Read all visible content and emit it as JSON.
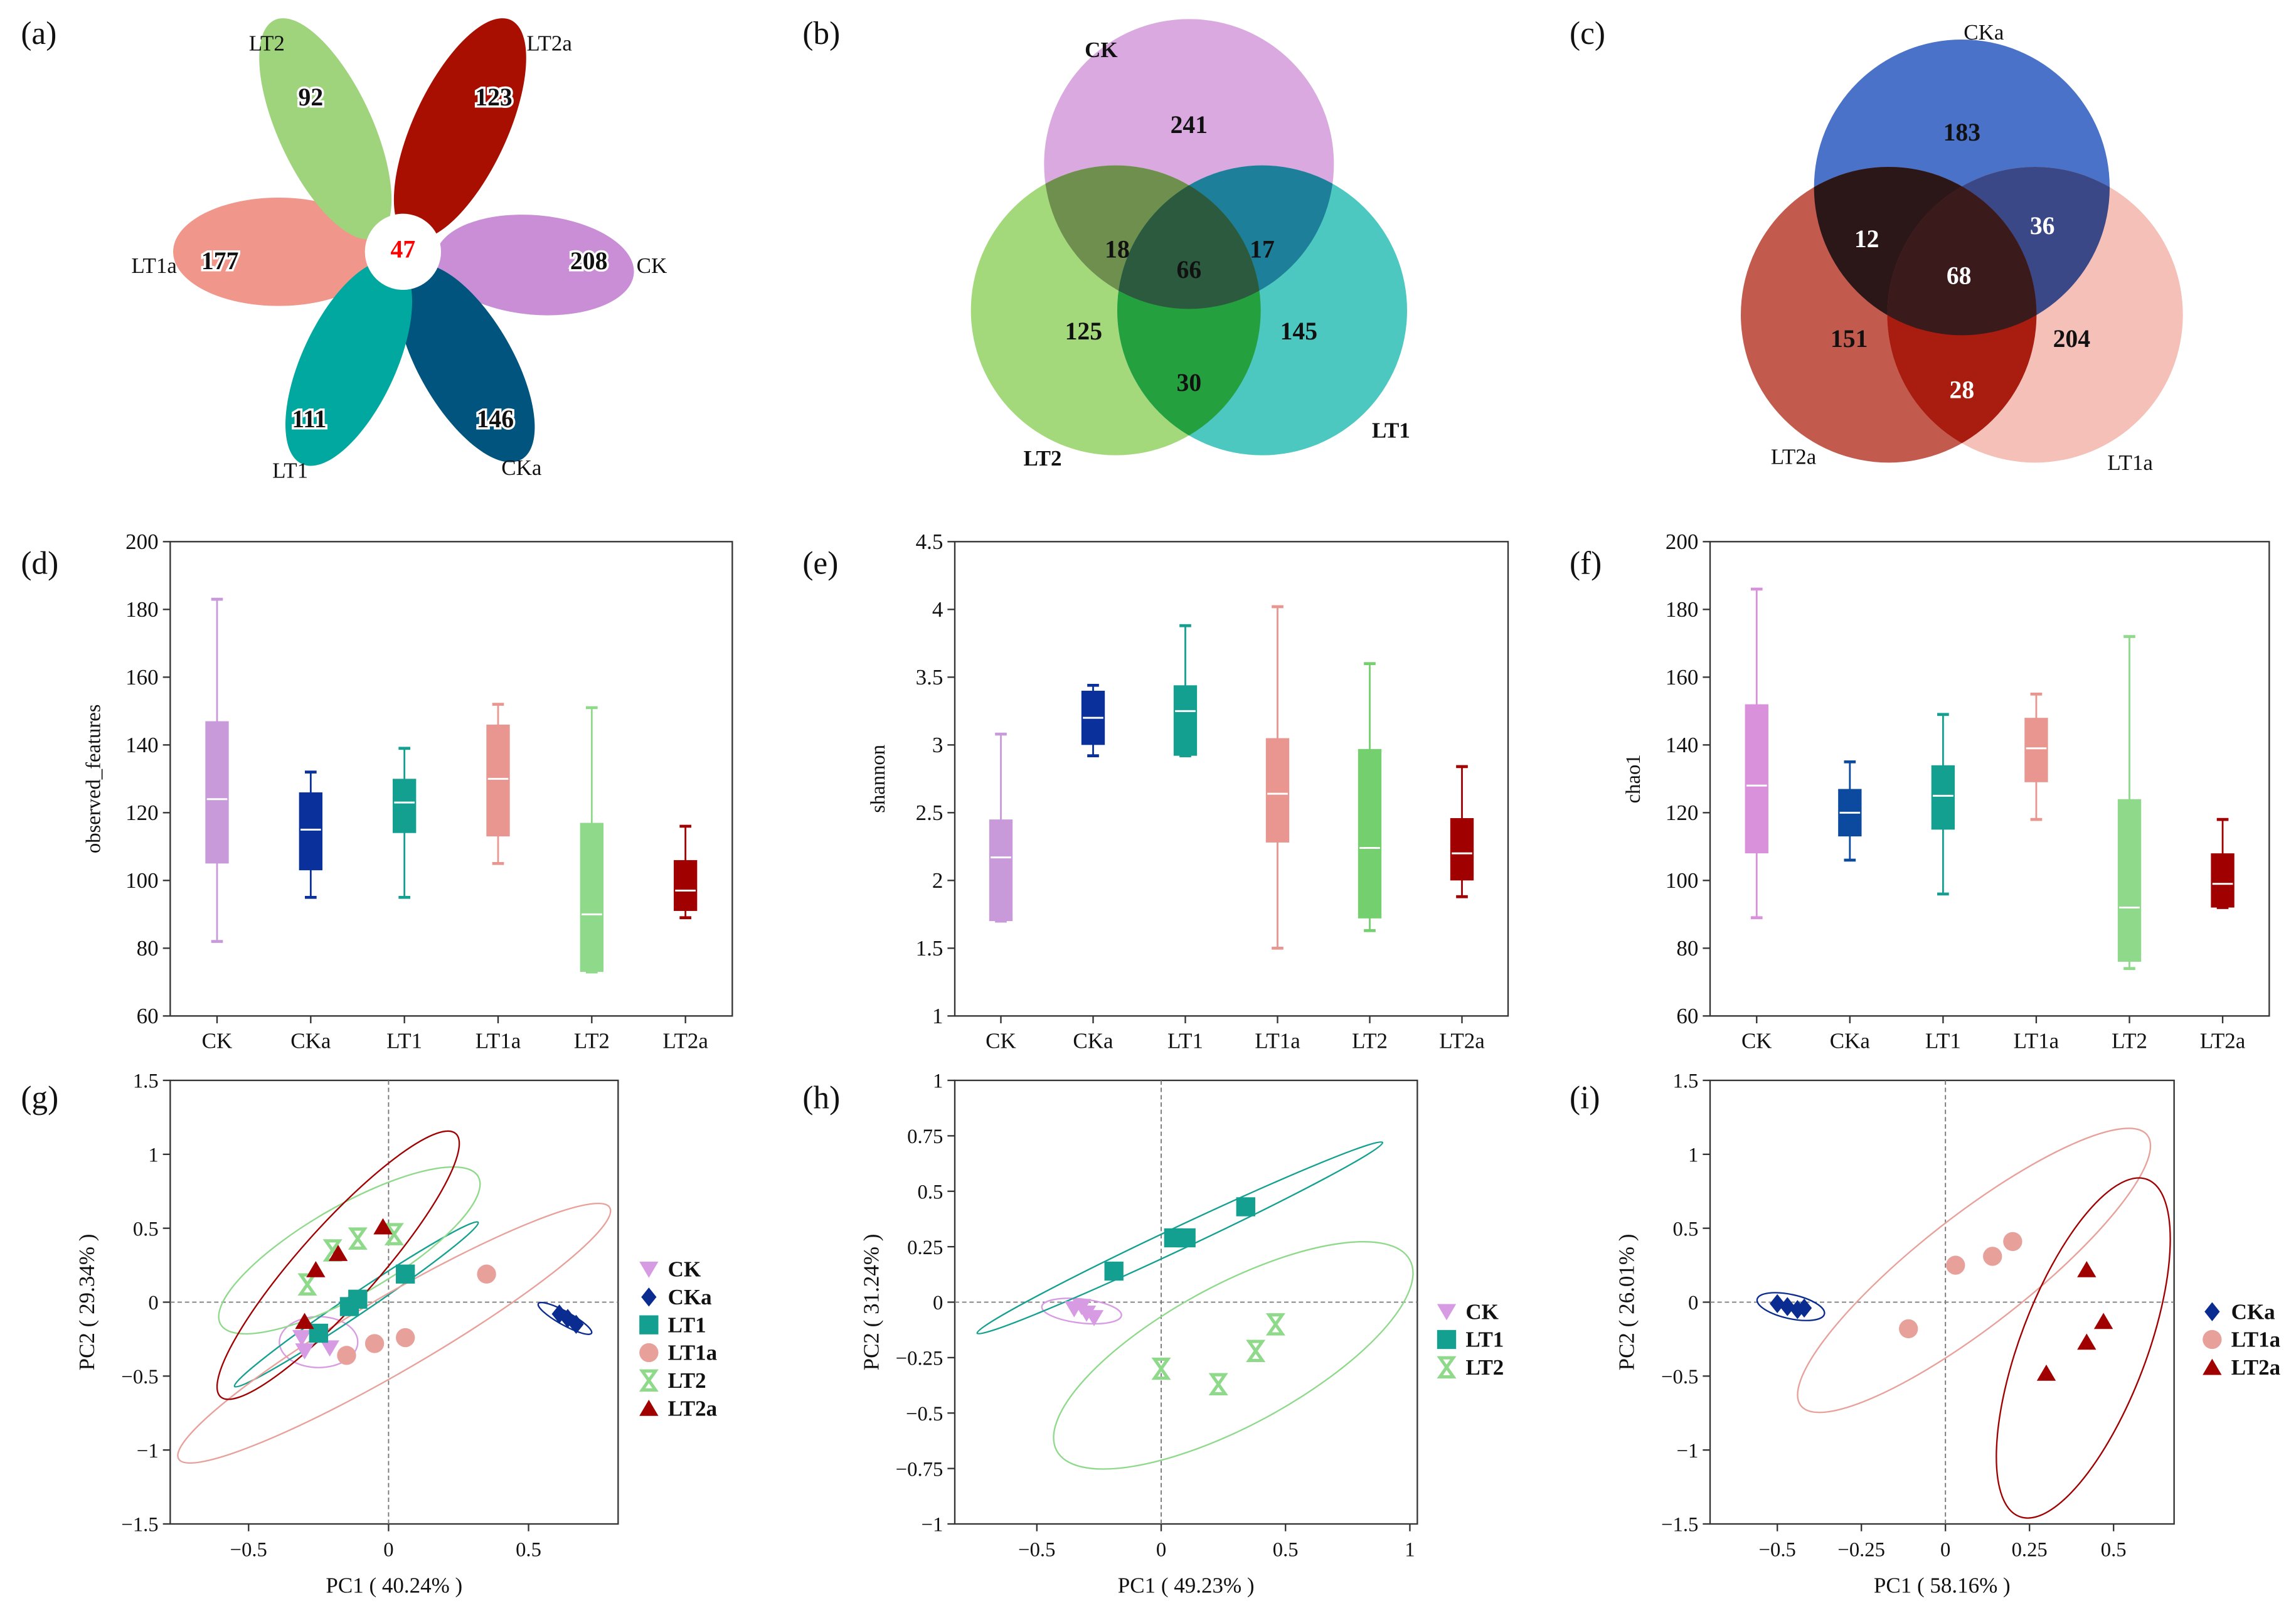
{
  "chart_data": [
    {
      "panel_label": "(a)",
      "type": "flower",
      "petals": [
        {
          "label": "LT1a",
          "count": "177",
          "color": "#f0968a"
        },
        {
          "label": "LT2",
          "count": "92",
          "color": "#9fd37c"
        },
        {
          "label": "LT2a",
          "count": "123",
          "color": "#a80f00"
        },
        {
          "label": "CK",
          "count": "208",
          "color": "#c98ed6"
        },
        {
          "label": "CKa",
          "count": "146",
          "color": "#00547e"
        },
        {
          "label": "LT1",
          "count": "111",
          "color": "#00a89f"
        }
      ],
      "core_count": "47",
      "core_color": "#ff0000"
    },
    {
      "panel_label": "(b)",
      "type": "venn",
      "sets": [
        {
          "label": "CK",
          "color": "#d9a9e0"
        },
        {
          "label": "LT2",
          "color": "#a3d97b"
        },
        {
          "label": "LT1",
          "color": "#4cc8c1"
        }
      ],
      "intersection_colors": {
        "A_B": "#6e8f4e",
        "A_C": "#1d7f99",
        "B_C": "#25a03f",
        "A_B_C": "#2b5a3e"
      },
      "regions": [
        {
          "sets": "CK",
          "value": "241"
        },
        {
          "sets": "CK∩LT2",
          "value": "18"
        },
        {
          "sets": "CK∩LT2∩LT1",
          "value": "66"
        },
        {
          "sets": "CK∩LT1",
          "value": "17"
        },
        {
          "sets": "LT2",
          "value": "125"
        },
        {
          "sets": "LT1",
          "value": "145"
        },
        {
          "sets": "LT2∩LT1",
          "value": "30"
        }
      ]
    },
    {
      "panel_label": "(c)",
      "type": "venn",
      "sets": [
        {
          "label": "CKa",
          "color": "#4a72c9"
        },
        {
          "label": "LT2a",
          "color": "#c25b4d"
        },
        {
          "label": "LT1a",
          "color": "#f4c0b8"
        }
      ],
      "intersection_colors": {
        "A_B": "#2c1718",
        "A_C": "#3a4888",
        "B_C": "#a91d10",
        "A_B_C": "#3a1a1b"
      },
      "regions": [
        {
          "sets": "CKa",
          "value": "183"
        },
        {
          "sets": "CKa∩LT2a",
          "value": "12"
        },
        {
          "sets": "CKa∩LT2a∩LT1a",
          "value": "68"
        },
        {
          "sets": "CKa∩LT1a",
          "value": "36"
        },
        {
          "sets": "LT2a",
          "value": "151"
        },
        {
          "sets": "LT1a",
          "value": "204"
        },
        {
          "sets": "LT2a∩LT1a",
          "value": "28"
        }
      ]
    },
    {
      "panel_label": "(d)",
      "type": "box",
      "ylabel": "observed_features",
      "ylim": [
        60,
        200
      ],
      "yticks": [
        60,
        80,
        100,
        120,
        140,
        160,
        180,
        200
      ],
      "ytick_labels": [
        "60",
        "80",
        "100",
        "120",
        "140",
        "160",
        "180",
        "200"
      ],
      "categories": [
        "CK",
        "CKa",
        "LT1",
        "LT1a",
        "LT2",
        "LT2a"
      ],
      "colors": [
        "#c99ad9",
        "#0a309b",
        "#14a090",
        "#e8968f",
        "#8fd98b",
        "#a00000"
      ],
      "boxes": [
        {
          "min": 82,
          "q1": 105,
          "median": 124,
          "q3": 147,
          "max": 183
        },
        {
          "min": 95,
          "q1": 103,
          "median": 115,
          "q3": 126,
          "max": 132
        },
        {
          "min": 95,
          "q1": 114,
          "median": 123,
          "q3": 130,
          "max": 139
        },
        {
          "min": 105,
          "q1": 113,
          "median": 130,
          "q3": 146,
          "max": 152
        },
        {
          "min": 73,
          "q1": 73,
          "median": 90,
          "q3": 117,
          "max": 151
        },
        {
          "min": 89,
          "q1": 91,
          "median": 97,
          "q3": 106,
          "max": 116
        }
      ]
    },
    {
      "panel_label": "(e)",
      "type": "box",
      "ylabel": "shannon",
      "ylim": [
        1,
        4.5
      ],
      "yticks": [
        1,
        1.5,
        2,
        2.5,
        3,
        3.5,
        4,
        4.5
      ],
      "ytick_labels": [
        "1",
        "1.5",
        "2",
        "2.5",
        "3",
        "3.5",
        "4",
        "4.5"
      ],
      "categories": [
        "CK",
        "CKa",
        "LT1",
        "LT1a",
        "LT2",
        "LT2a"
      ],
      "colors": [
        "#c99ad9",
        "#0a309b",
        "#14a090",
        "#e8968f",
        "#74cf6e",
        "#a00000"
      ],
      "boxes": [
        {
          "min": 1.7,
          "q1": 1.7,
          "median": 2.17,
          "q3": 2.45,
          "max": 3.08
        },
        {
          "min": 2.92,
          "q1": 3.0,
          "median": 3.2,
          "q3": 3.4,
          "max": 3.44
        },
        {
          "min": 2.92,
          "q1": 2.92,
          "median": 3.25,
          "q3": 3.44,
          "max": 3.88
        },
        {
          "min": 1.5,
          "q1": 2.28,
          "median": 2.64,
          "q3": 3.05,
          "max": 4.02
        },
        {
          "min": 1.63,
          "q1": 1.72,
          "median": 2.24,
          "q3": 2.97,
          "max": 3.6
        },
        {
          "min": 1.88,
          "q1": 2.0,
          "median": 2.2,
          "q3": 2.46,
          "max": 2.84
        }
      ]
    },
    {
      "panel_label": "(f)",
      "type": "box",
      "ylabel": "chao1",
      "ylim": [
        60,
        200
      ],
      "yticks": [
        60,
        80,
        100,
        120,
        140,
        160,
        180,
        200
      ],
      "ytick_labels": [
        "60",
        "80",
        "100",
        "120",
        "140",
        "160",
        "180",
        "200"
      ],
      "categories": [
        "CK",
        "CKa",
        "LT1",
        "LT1a",
        "LT2",
        "LT2a"
      ],
      "colors": [
        "#d991dc",
        "#0b4a9e",
        "#14a090",
        "#e8968f",
        "#8fd98b",
        "#a00000"
      ],
      "boxes": [
        {
          "min": 89,
          "q1": 108,
          "median": 128,
          "q3": 152,
          "max": 186
        },
        {
          "min": 106,
          "q1": 113,
          "median": 120,
          "q3": 127,
          "max": 135
        },
        {
          "min": 96,
          "q1": 115,
          "median": 125,
          "q3": 134,
          "max": 149
        },
        {
          "min": 118,
          "q1": 129,
          "median": 139,
          "q3": 148,
          "max": 155
        },
        {
          "min": 74,
          "q1": 76,
          "median": 92,
          "q3": 124,
          "max": 172
        },
        {
          "min": 92,
          "q1": 92,
          "median": 99,
          "q3": 108,
          "max": 118
        }
      ]
    },
    {
      "panel_label": "(g)",
      "type": "scatter",
      "xlabel": "PC1 ( 40.24% )",
      "ylabel": "PC2 ( 29.34% )",
      "xlim": [
        -0.78,
        0.82
      ],
      "ylim": [
        -1.5,
        1.5
      ],
      "xticks": [
        -0.5,
        0,
        0.5
      ],
      "xtick_labels": [
        "−0.5",
        "0",
        "0.5"
      ],
      "yticks": [
        -1.5,
        -1,
        -0.5,
        0,
        0.5,
        1,
        1.5
      ],
      "ytick_labels": [
        "−1.5",
        "−1",
        "−0.5",
        "0",
        "0.5",
        "1",
        "1.5"
      ],
      "legend_position": "right",
      "series": [
        {
          "name": "CK",
          "marker": "triangle-down",
          "color": "#d79be3",
          "points": [
            [
              -0.31,
              -0.24
            ],
            [
              -0.3,
              -0.33
            ],
            [
              -0.21,
              -0.31
            ]
          ],
          "ellipse": {
            "center": [
              -0.25,
              -0.27
            ],
            "major_vector": [
              0.14,
              0
            ],
            "minor_ratio": 0.65
          }
        },
        {
          "name": "CKa",
          "marker": "diamond",
          "color": "#0a2b8f",
          "points": [
            [
              0.61,
              -0.08
            ],
            [
              0.64,
              -0.11
            ],
            [
              0.67,
              -0.15
            ]
          ],
          "ellipse": {
            "center": [
              0.63,
              -0.11
            ],
            "major_vector": [
              0.095,
              -0.1
            ],
            "minor_ratio": 0.22
          }
        },
        {
          "name": "LT1",
          "marker": "square",
          "color": "#14a090",
          "points": [
            [
              0.06,
              0.19
            ],
            [
              -0.11,
              0.02
            ],
            [
              -0.14,
              -0.03
            ],
            [
              -0.25,
              -0.21
            ]
          ],
          "ellipse": {
            "center": [
              -0.115,
              -0.015
            ],
            "major_vector": [
              0.435,
              0.555
            ],
            "minor_ratio": 0.07
          }
        },
        {
          "name": "LT1a",
          "marker": "circle",
          "color": "#e8a09a",
          "points": [
            [
              0.35,
              0.19
            ],
            [
              0.06,
              -0.24
            ],
            [
              -0.05,
              -0.28
            ],
            [
              -0.15,
              -0.36
            ]
          ],
          "ellipse": {
            "center": [
              0.02,
              -0.21
            ],
            "major_vector": [
              0.77,
              0.85
            ],
            "minor_ratio": 0.15
          }
        },
        {
          "name": "LT2",
          "marker": "hourglass",
          "color": "#8fd98b",
          "points": [
            [
              -0.29,
              0.12
            ],
            [
              -0.2,
              0.35
            ],
            [
              -0.11,
              0.43
            ],
            [
              0.02,
              0.46
            ]
          ],
          "ellipse": {
            "center": [
              -0.14,
              0.35
            ],
            "major_vector": [
              0.46,
              0.5
            ],
            "minor_ratio": 0.3
          }
        },
        {
          "name": "LT2a",
          "marker": "triangle-up",
          "color": "#a00000",
          "points": [
            [
              -0.3,
              -0.13
            ],
            [
              -0.26,
              0.22
            ],
            [
              -0.18,
              0.33
            ],
            [
              -0.02,
              0.51
            ]
          ],
          "ellipse": {
            "center": [
              -0.18,
              0.25
            ],
            "major_vector": [
              0.42,
              0.89
            ],
            "minor_ratio": 0.22
          }
        }
      ]
    },
    {
      "panel_label": "(h)",
      "type": "scatter",
      "xlabel": "PC1 ( 49.23% )",
      "ylabel": "PC2 ( 31.24% )",
      "xlim": [
        -0.83,
        1.03
      ],
      "ylim": [
        -1,
        1
      ],
      "xticks": [
        -0.5,
        0,
        0.5,
        1
      ],
      "xtick_labels": [
        "−0.5",
        "0",
        "0.5",
        "1"
      ],
      "yticks": [
        -1,
        -0.75,
        -0.5,
        -0.25,
        0,
        0.25,
        0.5,
        0.75,
        1
      ],
      "ytick_labels": [
        "−1",
        "−0.75",
        "−0.5",
        "−0.25",
        "0",
        "0.25",
        "0.5",
        "0.75",
        "1"
      ],
      "legend_position": "right",
      "series": [
        {
          "name": "CK",
          "marker": "triangle-down",
          "color": "#d79be3",
          "points": [
            [
              -0.35,
              -0.03
            ],
            [
              -0.32,
              -0.02
            ],
            [
              -0.3,
              -0.05
            ],
            [
              -0.27,
              -0.07
            ]
          ],
          "ellipse": {
            "center": [
              -0.32,
              -0.04
            ],
            "major_vector": [
              0.16,
              -0.02
            ],
            "minor_ratio": 0.3
          }
        },
        {
          "name": "LT1",
          "marker": "square",
          "color": "#14a090",
          "points": [
            [
              -0.19,
              0.14
            ],
            [
              0.05,
              0.29
            ],
            [
              0.1,
              0.29
            ],
            [
              0.34,
              0.43
            ]
          ],
          "ellipse": {
            "center": [
              0.075,
              0.29
            ],
            "major_vector": [
              0.815,
              0.43
            ],
            "minor_ratio": 0.05
          }
        },
        {
          "name": "LT2",
          "marker": "hourglass",
          "color": "#8fd98b",
          "points": [
            [
              0.0,
              -0.3
            ],
            [
              0.23,
              -0.37
            ],
            [
              0.38,
              -0.22
            ],
            [
              0.46,
              -0.1
            ]
          ],
          "ellipse": {
            "center": [
              0.29,
              -0.24
            ],
            "major_vector": [
              0.71,
              0.43
            ],
            "minor_ratio": 0.35
          }
        }
      ]
    },
    {
      "panel_label": "(i)",
      "type": "scatter",
      "xlabel": "PC1 ( 58.16% )",
      "ylabel": "PC2 ( 26.01% )",
      "xlim": [
        -0.7,
        0.68
      ],
      "ylim": [
        -1.5,
        1.5
      ],
      "xticks": [
        -0.5,
        -0.25,
        0,
        0.25,
        0.5
      ],
      "xtick_labels": [
        "−0.5",
        "−0.25",
        "0",
        "0.25",
        "0.5"
      ],
      "yticks": [
        -1.5,
        -1,
        -0.5,
        0,
        0.5,
        1,
        1.5
      ],
      "ytick_labels": [
        "−1.5",
        "−1",
        "−0.5",
        "0",
        "0.5",
        "1",
        "1.5"
      ],
      "legend_position": "right",
      "series": [
        {
          "name": "CKa",
          "marker": "diamond",
          "color": "#0a2b8f",
          "points": [
            [
              -0.5,
              -0.01
            ],
            [
              -0.47,
              -0.03
            ],
            [
              -0.44,
              -0.05
            ],
            [
              -0.42,
              -0.04
            ]
          ],
          "ellipse": {
            "center": [
              -0.46,
              -0.03
            ],
            "major_vector": [
              0.1,
              -0.05
            ],
            "minor_ratio": 0.35
          }
        },
        {
          "name": "LT1a",
          "marker": "circle",
          "color": "#e8a09a",
          "points": [
            [
              -0.11,
              -0.18
            ],
            [
              0.03,
              0.25
            ],
            [
              0.14,
              0.31
            ],
            [
              0.2,
              0.41
            ]
          ],
          "ellipse": {
            "center": [
              0.085,
              0.215
            ],
            "major_vector": [
              0.515,
              0.915
            ],
            "minor_ratio": 0.25
          }
        },
        {
          "name": "LT2a",
          "marker": "triangle-up",
          "color": "#a00000",
          "points": [
            [
              0.3,
              -0.48
            ],
            [
              0.42,
              0.22
            ],
            [
              0.42,
              -0.27
            ],
            [
              0.47,
              -0.13
            ]
          ],
          "ellipse": {
            "center": [
              0.41,
              -0.31
            ],
            "major_vector": [
              0.19,
              1.14
            ],
            "minor_ratio": 0.35
          }
        }
      ]
    }
  ]
}
